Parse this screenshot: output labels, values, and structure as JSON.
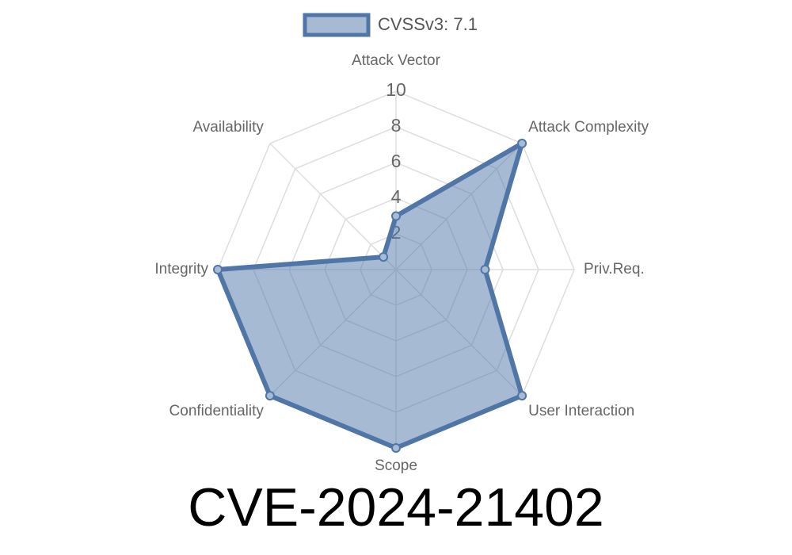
{
  "chart_data": {
    "type": "radar",
    "title": "CVE-2024-21402",
    "categories": [
      "Attack Vector",
      "Attack Complexity",
      "Priv.Req.",
      "User Interaction",
      "Scope",
      "Confidentiality",
      "Integrity",
      "Availability"
    ],
    "series": [
      {
        "name": "CVSSv3: 7.1",
        "color": "#4f76a7",
        "values": [
          3,
          10,
          5,
          10,
          10,
          10,
          10,
          1
        ]
      }
    ],
    "rlim": [
      0,
      10
    ],
    "rticks": [
      2,
      4,
      6,
      8,
      10
    ],
    "grid": true,
    "legend": "top"
  }
}
